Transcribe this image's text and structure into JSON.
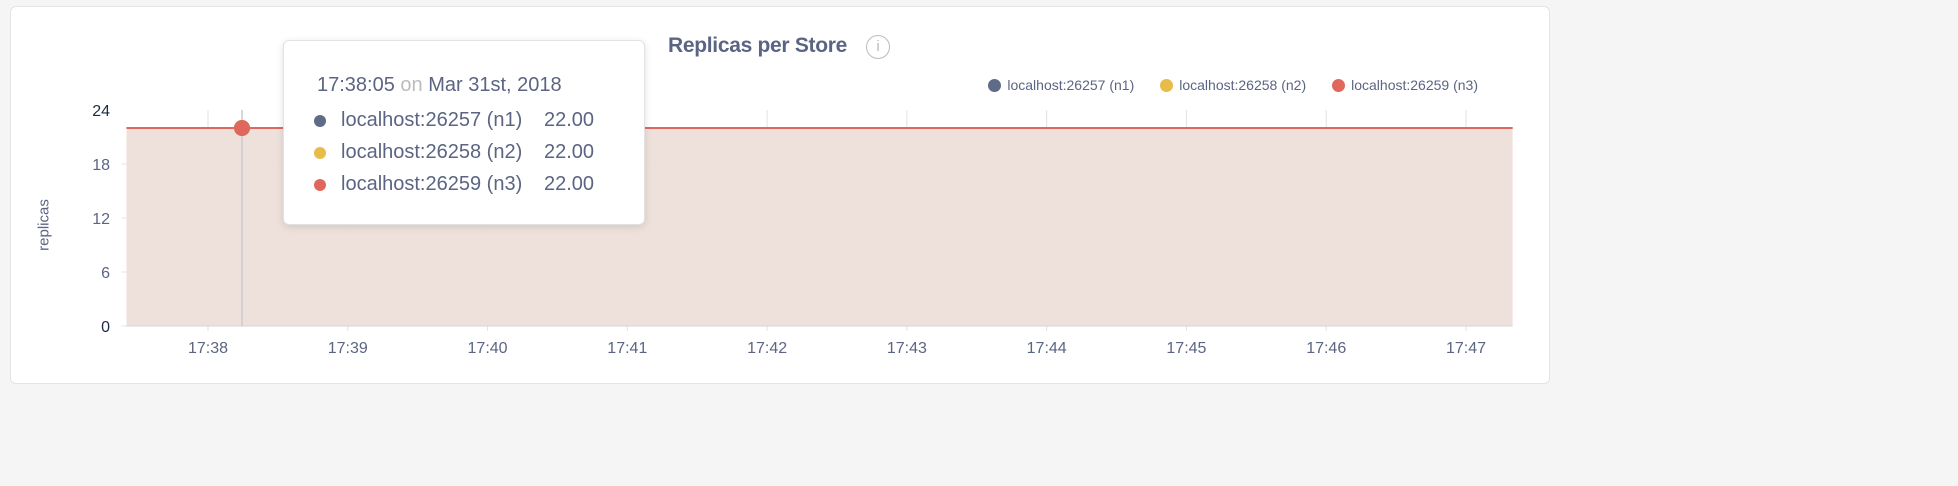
{
  "chart_data": {
    "type": "area",
    "title": "Replicas per Store",
    "ylabel": "replicas",
    "xlabel": "",
    "ylim": [
      0,
      24
    ],
    "y_ticks": [
      "0",
      "6",
      "12",
      "18",
      "24"
    ],
    "x_ticks": [
      "17:38",
      "17:39",
      "17:40",
      "17:41",
      "17:42",
      "17:43",
      "17:44",
      "17:45",
      "17:46",
      "17:47"
    ],
    "xlim": [
      "17:37:25",
      "17:47:20"
    ],
    "grid": true,
    "legend_position": "top-right",
    "series": [
      {
        "name": "localhost:26257 (n1)",
        "color": "#5f6b87",
        "x": [
          "17:37:25",
          "17:47:20"
        ],
        "values": [
          22,
          22
        ]
      },
      {
        "name": "localhost:26258 (n2)",
        "color": "#e8bc49",
        "x": [
          "17:37:25",
          "17:47:20"
        ],
        "values": [
          22,
          22
        ]
      },
      {
        "name": "localhost:26259 (n3)",
        "color": "#e0675e",
        "x": [
          "17:37:25",
          "17:47:20"
        ],
        "values": [
          22,
          22
        ]
      }
    ],
    "fill_color": "#eddfd9"
  },
  "tooltip": {
    "time": "17:38:05",
    "on": "on",
    "date": "Mar 31st, 2018",
    "rows": [
      {
        "label": "localhost:26257 (n1)",
        "value": "22.00",
        "color": "#5f6b87"
      },
      {
        "label": "localhost:26258 (n2)",
        "value": "22.00",
        "color": "#e8bc49"
      },
      {
        "label": "localhost:26259 (n3)",
        "value": "22.00",
        "color": "#e0675e"
      }
    ]
  },
  "info_icon": "i"
}
